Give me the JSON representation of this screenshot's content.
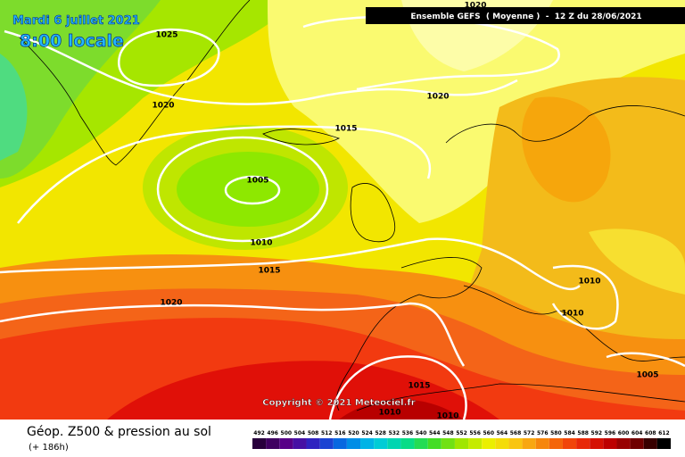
{
  "header": {
    "date": "Mardi 6 juillet 2021",
    "time": "8:00 locale",
    "run": "Ensemble GEFS  ( Moyenne )  -  12 Z du 28/06/2021"
  },
  "isobar_labels": [
    "1025",
    "1020",
    "1020",
    "1020",
    "1015",
    "1005",
    "1010",
    "1015",
    "1020",
    "1010",
    "1010",
    "1015",
    "1010",
    "1010",
    "1005"
  ],
  "footer": {
    "title": "Géop. Z500 & pression au sol",
    "lead": "(+ 186h)",
    "copyright": "Copyright © 2021 Meteociel.fr"
  },
  "scale": [
    492,
    496,
    500,
    504,
    508,
    512,
    516,
    520,
    524,
    528,
    532,
    536,
    540,
    544,
    548,
    552,
    556,
    560,
    564,
    568,
    572,
    576,
    580,
    584,
    588,
    592,
    596,
    600,
    604,
    608,
    612
  ]
}
